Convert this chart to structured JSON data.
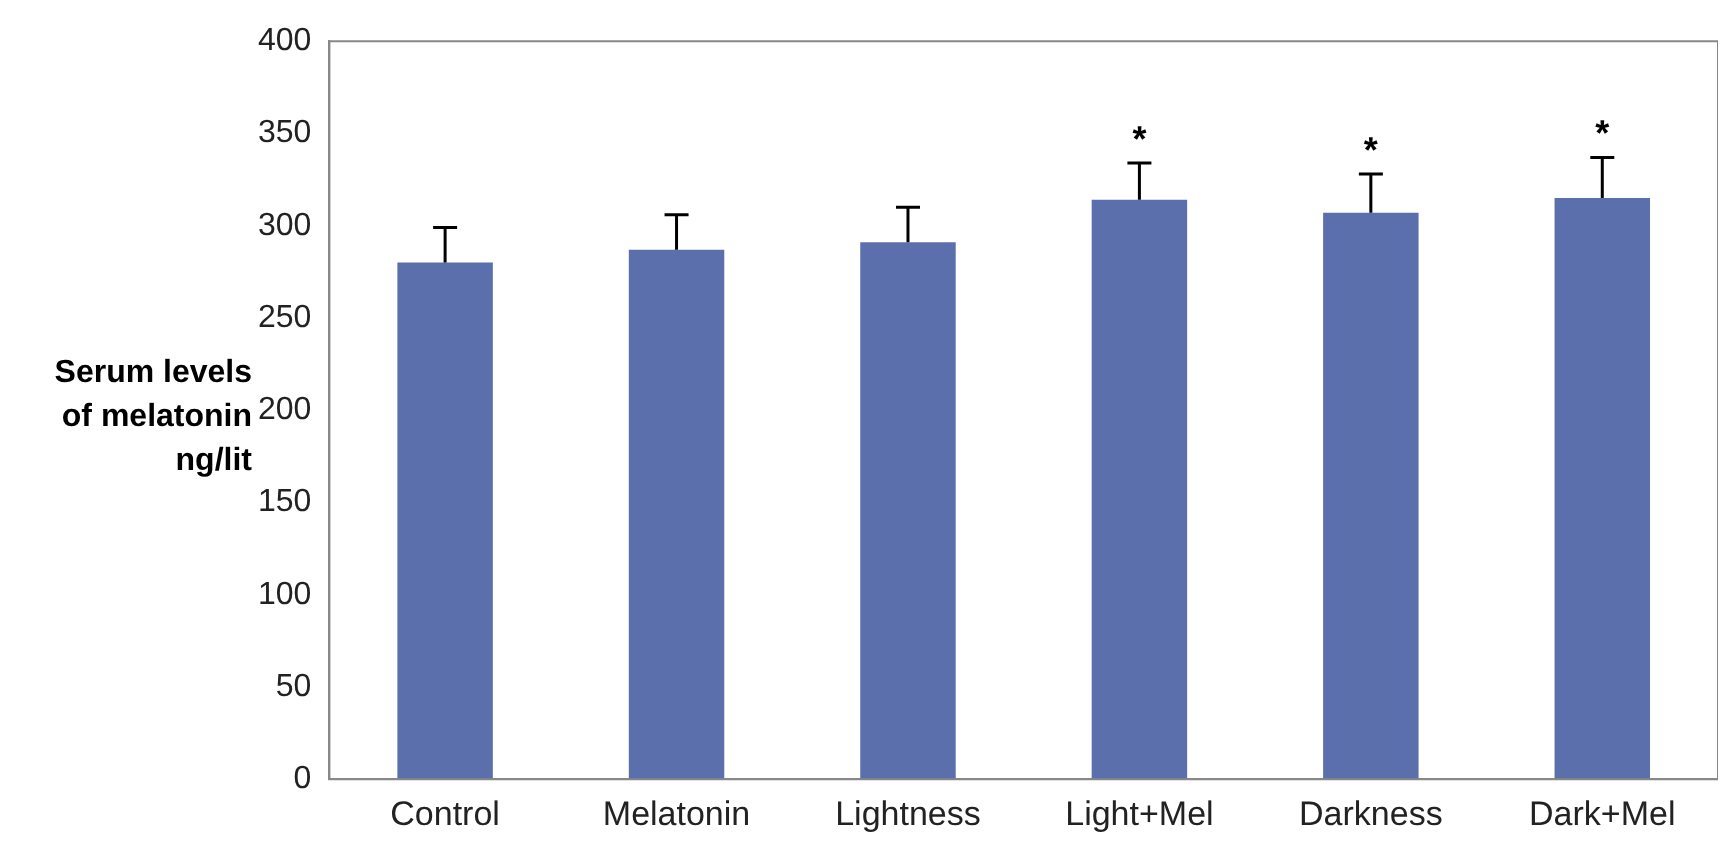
{
  "chart_data": {
    "type": "bar",
    "ylabel": "Serum levels\nof melatonin\nng/lit",
    "categories": [
      "Control",
      "Melatonin",
      "Lightness",
      "Light+Mel",
      "Darkness",
      "Dark+Mel"
    ],
    "values": [
      280,
      287,
      291,
      314,
      307,
      315
    ],
    "errors": [
      19,
      19,
      19,
      20,
      21,
      22
    ],
    "color": "#5b6fad",
    "ylim": [
      0,
      400
    ],
    "yticks": [
      0,
      50,
      100,
      150,
      200,
      250,
      300,
      350,
      400
    ],
    "grid": false,
    "legend": false,
    "annotations": [
      {
        "text": "*",
        "x": "Light+Mel",
        "y": 334
      },
      {
        "text": "*",
        "x": "Darkness",
        "y": 328
      },
      {
        "text": "*",
        "x": "Dark+Mel",
        "y": 337
      }
    ]
  }
}
